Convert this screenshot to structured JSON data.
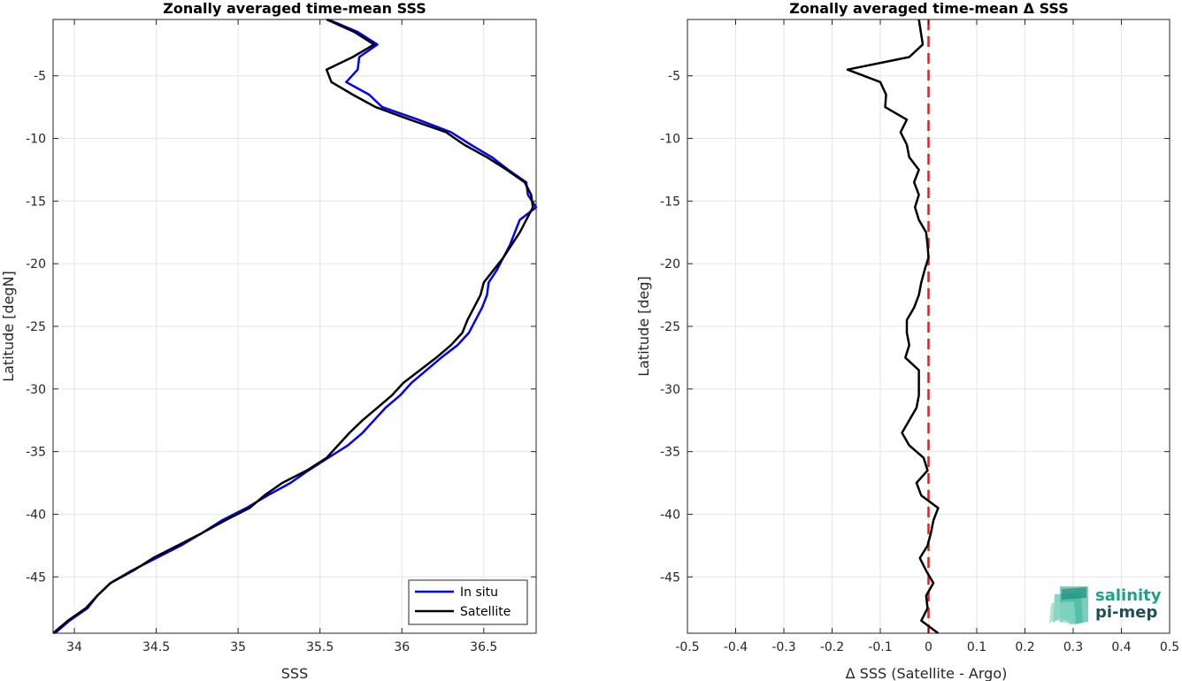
{
  "chart_data": [
    {
      "type": "line",
      "title": "Zonally averaged time-mean SSS",
      "xlabel": "SSS",
      "ylabel": "Latitude [degN]",
      "xlim": [
        33.87,
        36.82
      ],
      "ylim": [
        -49.5,
        -0.5
      ],
      "xticks": [
        34,
        34.5,
        35,
        35.5,
        36,
        36.5
      ],
      "xtick_labels": [
        "34",
        "34.5",
        "35",
        "35.5",
        "36",
        "36.5"
      ],
      "yticks": [
        -5,
        -10,
        -15,
        -20,
        -25,
        -30,
        -35,
        -40,
        -45
      ],
      "ytick_labels": [
        "-5",
        "-10",
        "-15",
        "-20",
        "-25",
        "-30",
        "-35",
        "-40",
        "-45"
      ],
      "grid": true,
      "legend_position": "bottom-right",
      "series": [
        {
          "name": "In situ",
          "color": "#0000ff",
          "y": [
            -0.5,
            -1.5,
            -2.5,
            -3.5,
            -4.5,
            -5.5,
            -6.5,
            -7.5,
            -8.5,
            -9.5,
            -10.5,
            -11.5,
            -12.5,
            -13.5,
            -14.5,
            -15.5,
            -16.5,
            -17.5,
            -18.5,
            -19.5,
            -20.5,
            -21.5,
            -22.5,
            -23.5,
            -24.5,
            -25.5,
            -26.5,
            -27.5,
            -28.5,
            -29.5,
            -30.5,
            -31.5,
            -32.5,
            -33.5,
            -34.5,
            -35.5,
            -36.5,
            -37.5,
            -38.5,
            -39.5,
            -40.5,
            -41.5,
            -42.5,
            -43.5,
            -44.5,
            -45.5,
            -46.5,
            -47.5,
            -48.5,
            -49.5
          ],
          "x": [
            35.55,
            35.73,
            35.85,
            35.74,
            35.73,
            35.66,
            35.8,
            35.88,
            36.1,
            36.3,
            36.42,
            36.55,
            36.65,
            36.76,
            36.77,
            36.82,
            36.72,
            36.69,
            36.66,
            36.62,
            36.58,
            36.53,
            36.52,
            36.49,
            36.45,
            36.41,
            36.34,
            36.24,
            36.15,
            36.06,
            35.99,
            35.9,
            35.83,
            35.76,
            35.67,
            35.55,
            35.43,
            35.32,
            35.18,
            35.05,
            34.9,
            34.78,
            34.65,
            34.5,
            34.35,
            34.22,
            34.14,
            34.08,
            33.97,
            33.88
          ]
        },
        {
          "name": "Satellite",
          "color": "#000000",
          "y": [
            -0.5,
            -1.5,
            -2.5,
            -3.5,
            -4.5,
            -5.5,
            -6.5,
            -7.5,
            -8.5,
            -9.5,
            -10.5,
            -11.5,
            -12.5,
            -13.5,
            -14.5,
            -15.5,
            -16.5,
            -17.5,
            -18.5,
            -19.5,
            -20.5,
            -21.5,
            -22.5,
            -23.5,
            -24.5,
            -25.5,
            -26.5,
            -27.5,
            -28.5,
            -29.5,
            -30.5,
            -31.5,
            -32.5,
            -33.5,
            -34.5,
            -35.5,
            -36.5,
            -37.5,
            -38.5,
            -39.5,
            -40.5,
            -41.5,
            -42.5,
            -43.5,
            -44.5,
            -45.5,
            -46.5,
            -47.5,
            -48.5,
            -49.5
          ],
          "x": [
            35.54,
            35.71,
            35.83,
            35.7,
            35.54,
            35.57,
            35.7,
            35.84,
            36.05,
            36.27,
            36.38,
            36.52,
            36.64,
            36.75,
            36.79,
            36.8,
            36.76,
            36.72,
            36.67,
            36.62,
            36.56,
            36.5,
            36.48,
            36.44,
            36.4,
            36.37,
            36.3,
            36.21,
            36.11,
            36.01,
            35.94,
            35.85,
            35.76,
            35.68,
            35.61,
            35.54,
            35.42,
            35.27,
            35.16,
            35.07,
            34.92,
            34.78,
            34.63,
            34.48,
            34.36,
            34.22,
            34.14,
            34.07,
            33.96,
            33.87
          ]
        }
      ]
    },
    {
      "type": "line",
      "title": "Zonally averaged time-mean Δ SSS",
      "xlabel": "Δ SSS (Satellite - Argo)",
      "ylabel": "Latitude [deg]",
      "xlim": [
        -0.5,
        0.5
      ],
      "ylim": [
        -49.5,
        -0.5
      ],
      "xticks": [
        -0.5,
        -0.4,
        -0.3,
        -0.2,
        -0.1,
        0,
        0.1,
        0.2,
        0.3,
        0.4,
        0.5
      ],
      "xtick_labels": [
        "-0.5",
        "-0.4",
        "-0.3",
        "-0.2",
        "-0.1",
        "0",
        "0.1",
        "0.2",
        "0.3",
        "0.4",
        "0.5"
      ],
      "yticks": [
        -5,
        -10,
        -15,
        -20,
        -25,
        -30,
        -35,
        -40,
        -45
      ],
      "ytick_labels": [
        "-5",
        "-10",
        "-15",
        "-20",
        "-25",
        "-30",
        "-35",
        "-40",
        "-45"
      ],
      "grid": true,
      "reference_line": {
        "x": 0,
        "color": "#e81c1c",
        "style": "dashed"
      },
      "series": [
        {
          "color": "#000000",
          "y": [
            -0.5,
            -1.5,
            -2.5,
            -3.5,
            -4.5,
            -5.5,
            -6.5,
            -7.5,
            -8.5,
            -9.5,
            -10.5,
            -11.5,
            -12.5,
            -13.5,
            -14.5,
            -15.5,
            -16.5,
            -17.5,
            -18.5,
            -19.5,
            -20.5,
            -21.5,
            -22.5,
            -23.5,
            -24.5,
            -25.5,
            -26.5,
            -27.5,
            -28.5,
            -29.5,
            -30.5,
            -31.5,
            -32.5,
            -33.5,
            -34.5,
            -35.5,
            -36.5,
            -37.5,
            -38.5,
            -39.5,
            -40.5,
            -41.5,
            -42.5,
            -43.5,
            -44.5,
            -45.5,
            -46.5,
            -47.5,
            -48.5,
            -49.5
          ],
          "x": [
            -0.02,
            -0.016,
            -0.012,
            -0.04,
            -0.168,
            -0.1,
            -0.088,
            -0.09,
            -0.045,
            -0.058,
            -0.045,
            -0.04,
            -0.02,
            -0.03,
            -0.02,
            -0.028,
            -0.02,
            -0.005,
            -0.002,
            0.0,
            -0.008,
            -0.015,
            -0.02,
            -0.03,
            -0.045,
            -0.045,
            -0.04,
            -0.048,
            -0.02,
            -0.02,
            -0.02,
            -0.025,
            -0.04,
            -0.055,
            -0.04,
            -0.01,
            -0.002,
            -0.025,
            -0.015,
            0.02,
            0.01,
            0.005,
            -0.002,
            -0.018,
            -0.005,
            0.01,
            -0.005,
            -0.002,
            -0.015,
            0.02
          ]
        }
      ]
    }
  ],
  "legend": [
    {
      "label": "In situ",
      "color": "#0000ff"
    },
    {
      "label": "Satellite",
      "color": "#000000"
    }
  ],
  "logo": {
    "line1": "salinity",
    "line2": "pi-mep"
  }
}
